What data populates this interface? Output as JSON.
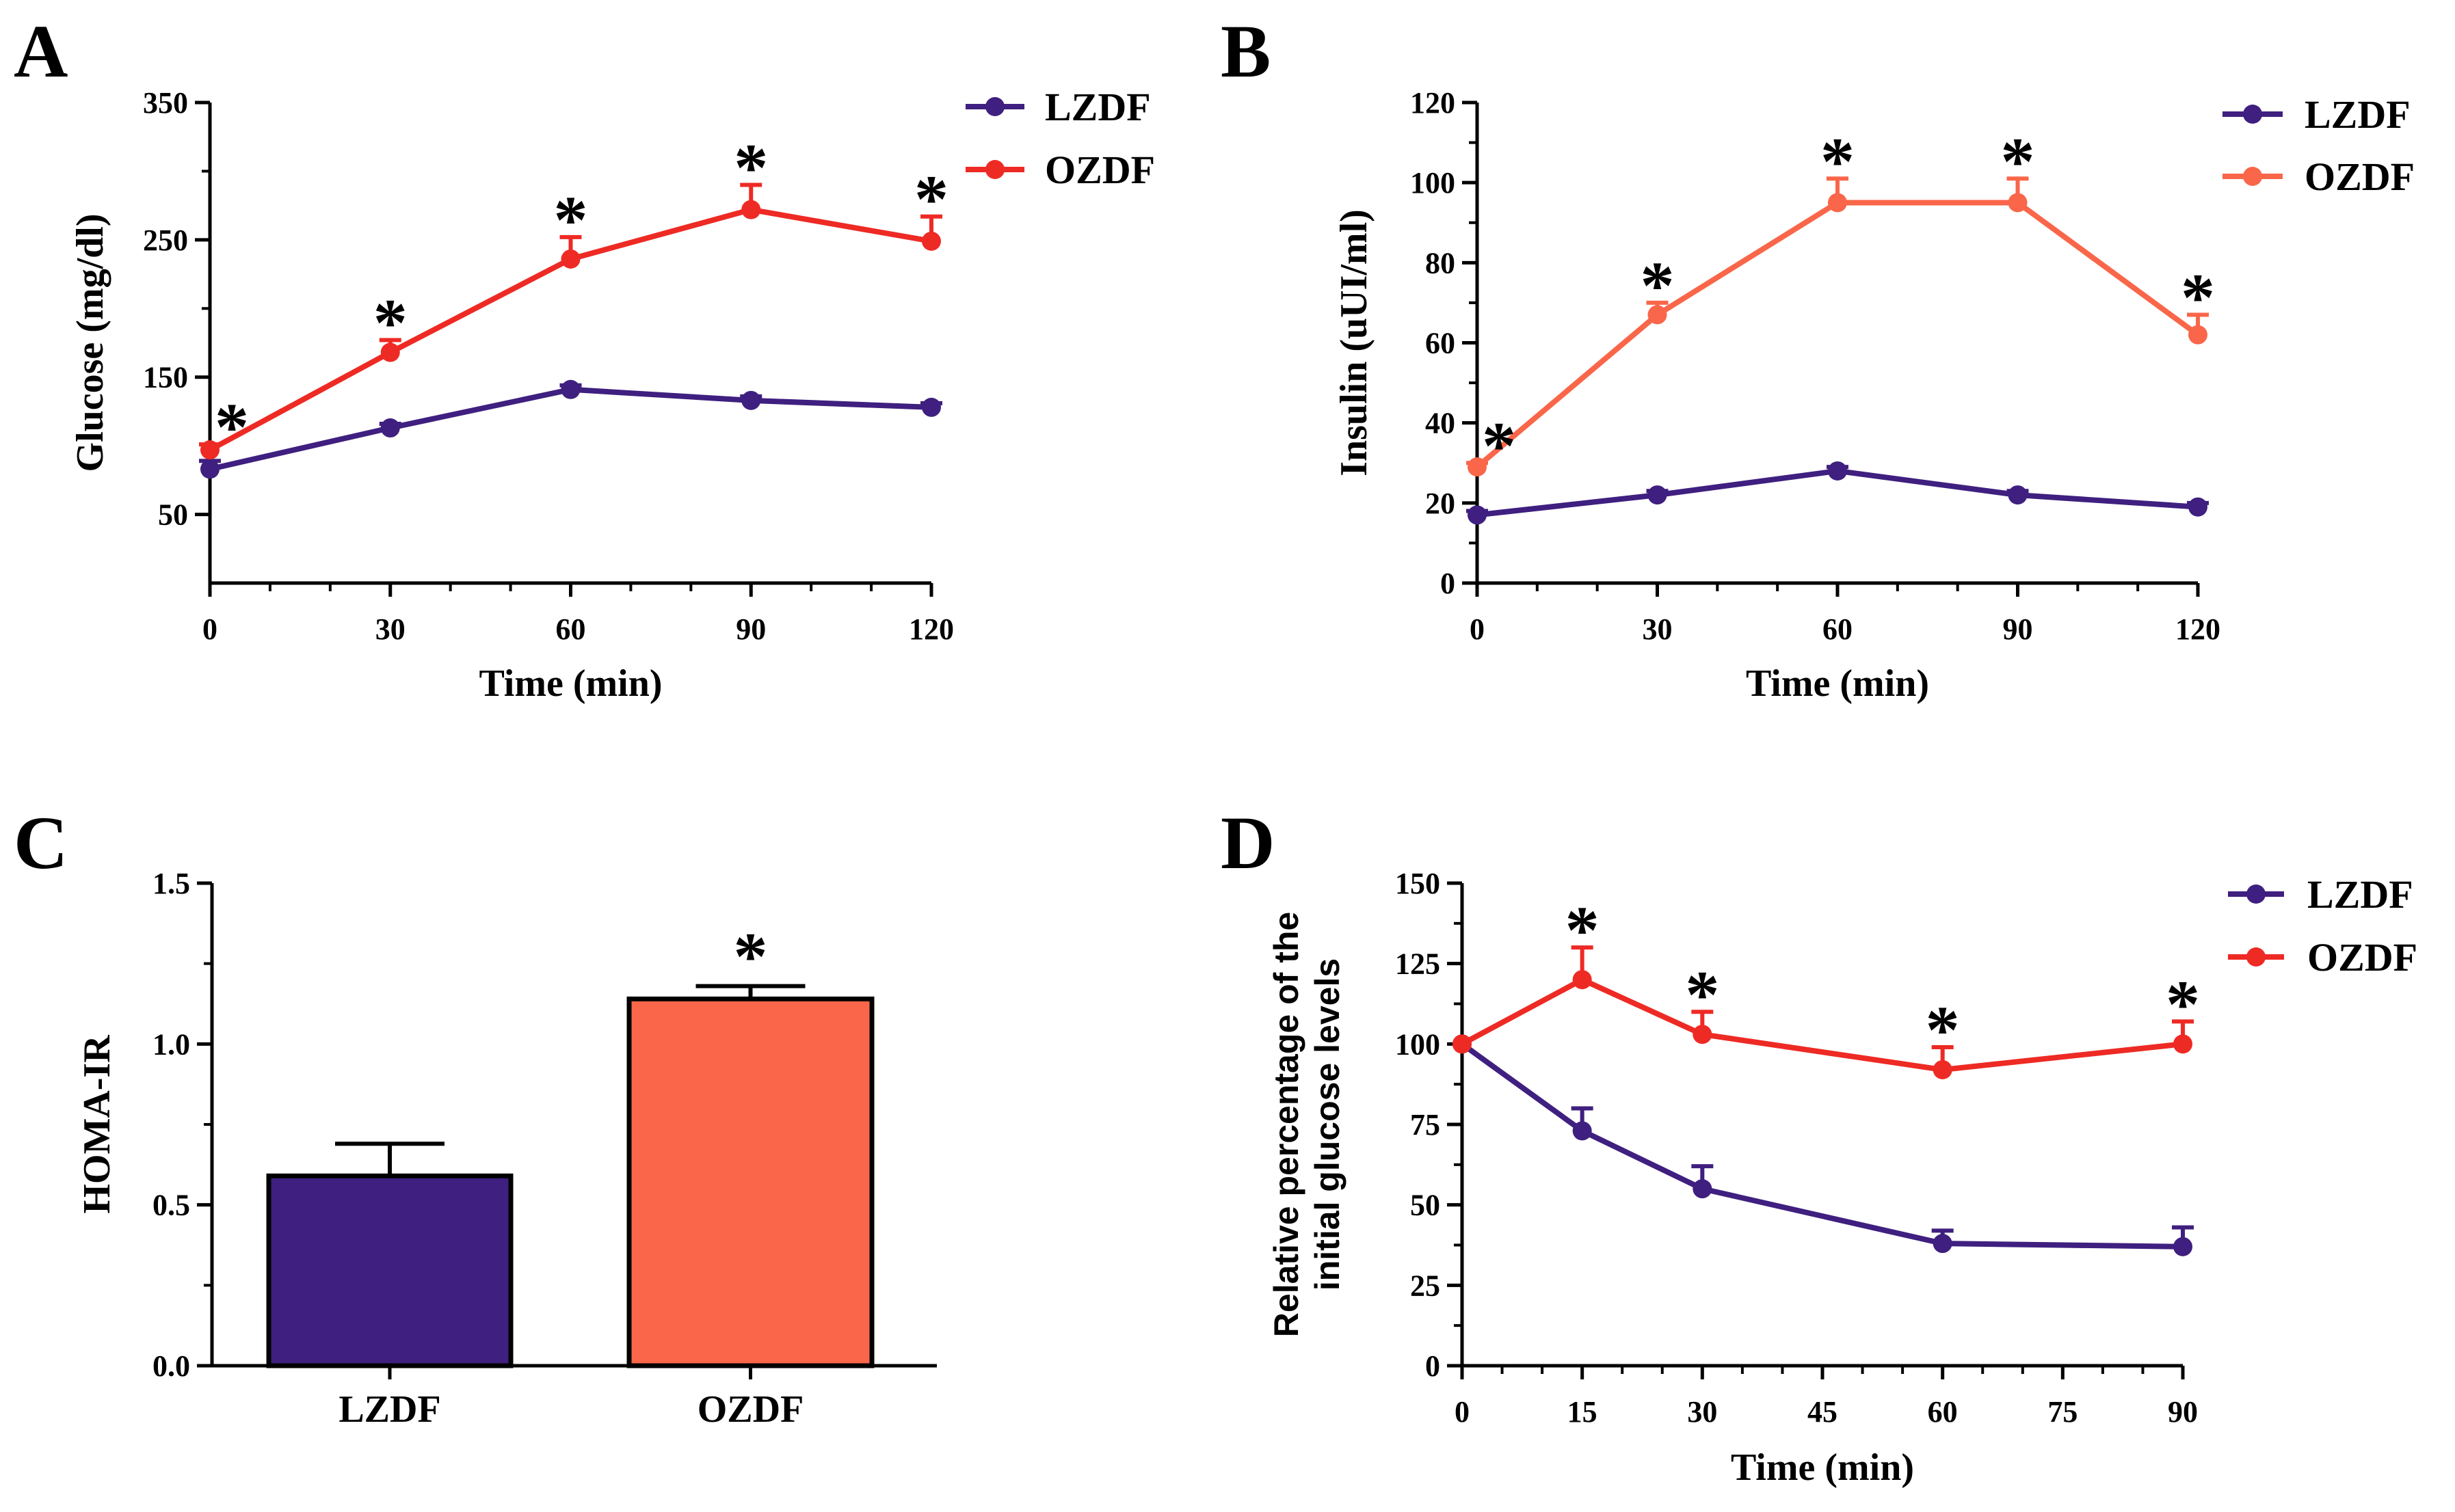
{
  "chart_data": [
    {
      "panel": "A",
      "type": "line",
      "title": "",
      "xlabel": "Time (min)",
      "ylabel": "Glucose (mg/dl)",
      "x": [
        0,
        30,
        60,
        90,
        120
      ],
      "xticks": [
        0,
        30,
        60,
        90,
        120
      ],
      "xlim": [
        0,
        120
      ],
      "yticks": [
        50,
        150,
        250,
        350
      ],
      "ylim": [
        0,
        350
      ],
      "legend": "top-right",
      "significance_marker": "*",
      "significant_x": [
        0,
        30,
        60,
        90,
        120
      ],
      "series": [
        {
          "name": "LZDF",
          "color": "#3f1f7f",
          "values": [
            83,
            113,
            141,
            133,
            128
          ],
          "errors": [
            6,
            3,
            3,
            3,
            3
          ],
          "significant": [
            false,
            false,
            false,
            false,
            false
          ]
        },
        {
          "name": "OZDF",
          "color": "#ee2a24",
          "values": [
            97,
            168,
            236,
            272,
            249
          ],
          "errors": [
            4,
            9,
            16,
            18,
            18
          ],
          "significant": [
            true,
            true,
            true,
            true,
            true
          ]
        }
      ]
    },
    {
      "panel": "B",
      "type": "line",
      "title": "",
      "xlabel": "Time (min)",
      "ylabel": "Insulin (uUI/ml)",
      "x": [
        0,
        30,
        60,
        90,
        120
      ],
      "xticks": [
        0,
        30,
        60,
        90,
        120
      ],
      "xlim": [
        0,
        120
      ],
      "yticks": [
        0,
        20,
        40,
        60,
        80,
        100,
        120
      ],
      "ylim": [
        0,
        120
      ],
      "legend": "top-right",
      "significance_marker": "*",
      "significant_x": [
        0,
        30,
        60,
        90,
        120
      ],
      "series": [
        {
          "name": "LZDF",
          "color": "#3f1f7f",
          "values": [
            17,
            22,
            28,
            22,
            19
          ],
          "errors": [
            1,
            1,
            1,
            1,
            1
          ],
          "significant": [
            false,
            false,
            false,
            false,
            false
          ]
        },
        {
          "name": "OZDF",
          "color": "#f96649",
          "values": [
            29,
            67,
            95,
            95,
            62
          ],
          "errors": [
            1,
            3,
            6,
            6,
            5
          ],
          "significant": [
            true,
            true,
            true,
            true,
            true
          ]
        }
      ]
    },
    {
      "panel": "C",
      "type": "bar",
      "title": "",
      "xlabel": "",
      "ylabel": "HOMA-IR",
      "categories": [
        "LZDF",
        "OZDF"
      ],
      "values": [
        0.59,
        1.14
      ],
      "errors": [
        0.1,
        0.04
      ],
      "colors": [
        "#3f1f7f",
        "#f96649"
      ],
      "significant": [
        false,
        true
      ],
      "significance_marker": "*",
      "yticks": [
        "0.0",
        "0.5",
        "1.0",
        "1.5"
      ],
      "ylim": [
        0,
        1.5
      ]
    },
    {
      "panel": "D",
      "type": "line",
      "title": "",
      "xlabel": "Time (min)",
      "ylabel_lines": [
        "Relative percentage of the",
        "initial glucose levels"
      ],
      "x": [
        0,
        15,
        30,
        60,
        90
      ],
      "xticks": [
        0,
        15,
        30,
        45,
        60,
        75,
        90
      ],
      "xlim": [
        0,
        90
      ],
      "yticks": [
        0,
        25,
        50,
        75,
        100,
        125,
        150
      ],
      "ylim": [
        0,
        150
      ],
      "legend": "top-right",
      "significance_marker": "*",
      "significant_x": [
        15,
        30,
        60,
        90
      ],
      "series": [
        {
          "name": "LZDF",
          "color": "#3f1f7f",
          "values": [
            100,
            73,
            55,
            38,
            37
          ],
          "errors": [
            0,
            7,
            7,
            4,
            6
          ],
          "significant": [
            false,
            false,
            false,
            false,
            false
          ]
        },
        {
          "name": "OZDF",
          "color": "#ee2a24",
          "values": [
            100,
            120,
            103,
            92,
            100
          ],
          "errors": [
            0,
            10,
            7,
            7,
            7
          ],
          "significant": [
            false,
            true,
            true,
            true,
            true
          ]
        }
      ]
    }
  ]
}
